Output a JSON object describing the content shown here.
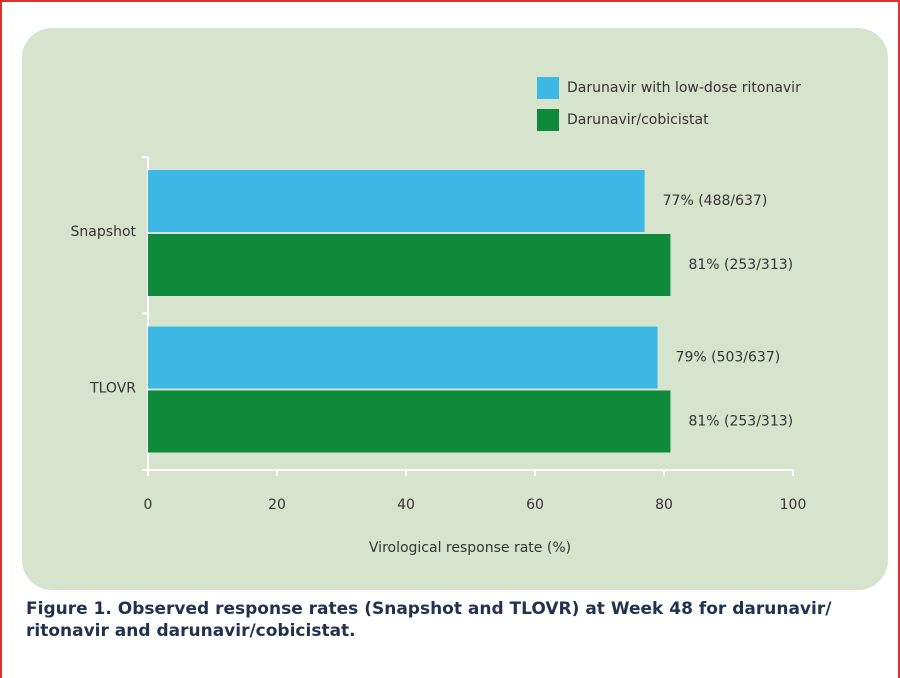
{
  "chart_data": {
    "type": "hbar",
    "categories": [
      "Snapshot",
      "TLOVR"
    ],
    "series": [
      {
        "name": "Darunavir with low-dose ritonavir",
        "color": "#3db8e4",
        "values": [
          77,
          79
        ],
        "value_labels": [
          "77% (488/637)",
          "79% (503/637)"
        ]
      },
      {
        "name": "Darunavir/cobicistat",
        "color": "#0f8a3c",
        "values": [
          81,
          81
        ],
        "value_labels": [
          "81% (253/313)",
          "81% (253/313)"
        ]
      }
    ],
    "xlabel": "Virological response rate (%)",
    "xlim": [
      0,
      100
    ],
    "xticks": [
      0,
      20,
      40,
      60,
      80,
      100
    ],
    "legend": "top-right",
    "caption": "Figure 1. Observed response rates (Snapshot and TLOVR) at Week 48 for darunavir/ ritonavir and darunavir/cobicistat."
  }
}
